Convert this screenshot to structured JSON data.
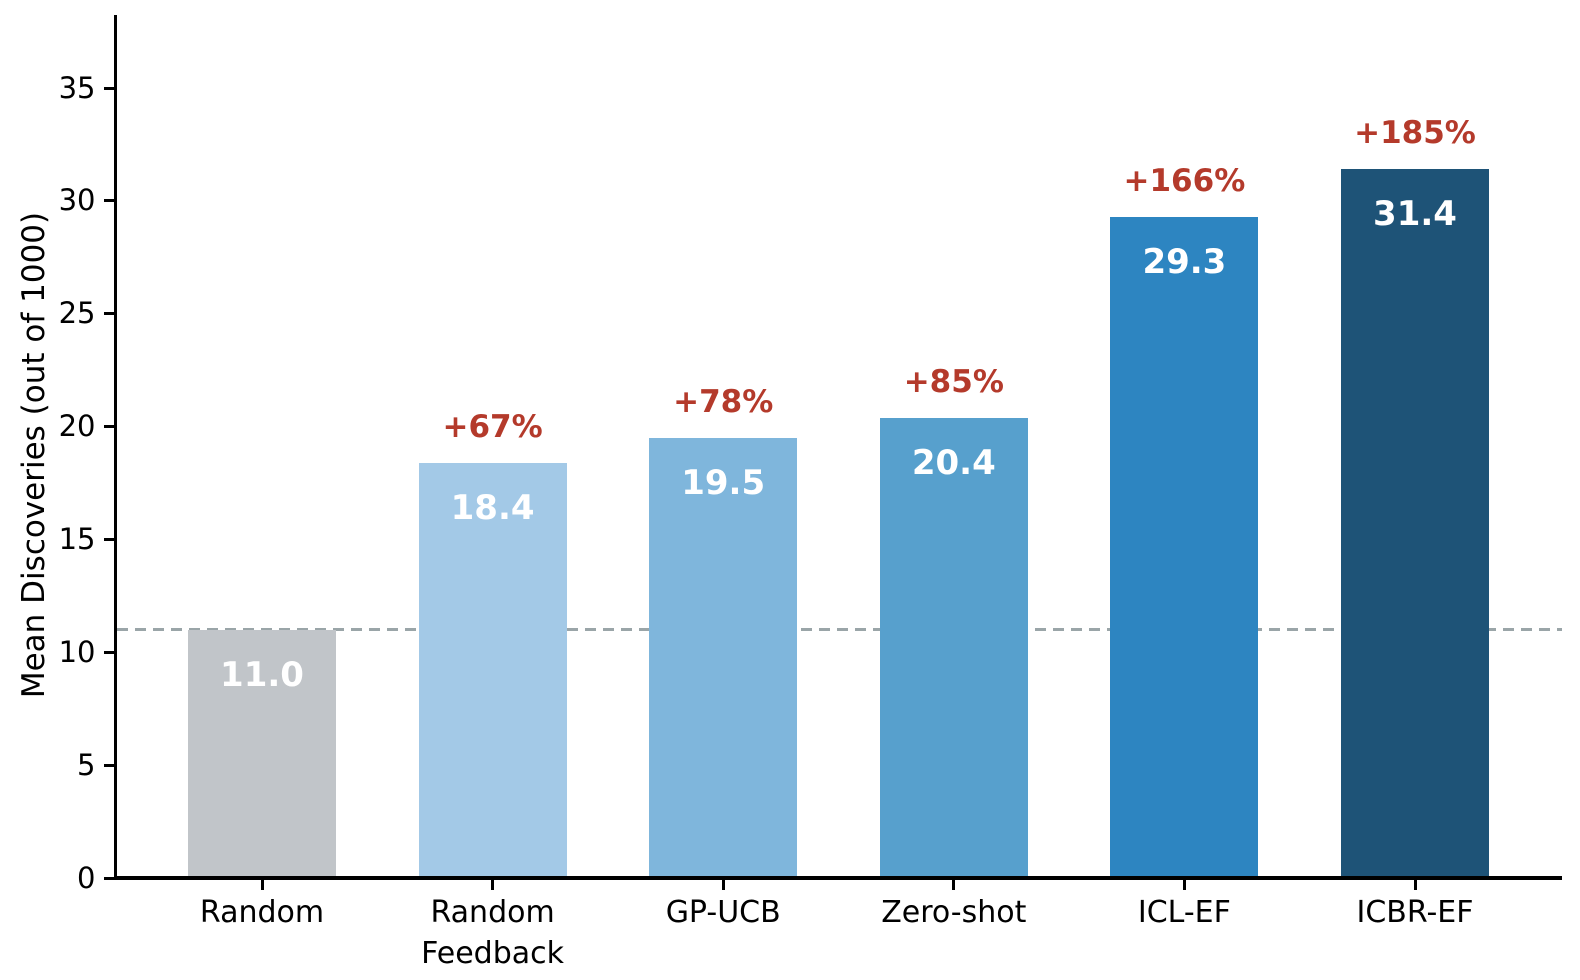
{
  "chart_data": {
    "type": "bar",
    "title": "",
    "ylabel": "Mean Discoveries (out of 1000)",
    "xlabel": "",
    "categories": [
      "Random",
      "Random\nFeedback",
      "GP-UCB",
      "Zero-shot",
      "ICL-EF",
      "ICBR-EF"
    ],
    "values": [
      11.0,
      18.4,
      19.5,
      20.4,
      29.3,
      31.4
    ],
    "value_labels": [
      "11.0",
      "18.4",
      "19.5",
      "20.4",
      "29.3",
      "31.4"
    ],
    "pct_gain_labels": [
      "",
      "+67%",
      "+78%",
      "+85%",
      "+166%",
      "+185%"
    ],
    "bar_colors": [
      "#c1c5c9",
      "#a3c9e7",
      "#7fb6dc",
      "#57a0cd",
      "#2d85c1",
      "#1e5377"
    ],
    "value_label_color": "#ffffff",
    "annotation_color": "#b43a2b",
    "baseline": {
      "value": 11.0,
      "style": "dashed",
      "color": "#9aa5a8"
    },
    "yticks": [
      0,
      5,
      10,
      15,
      20,
      25,
      30,
      35
    ],
    "ylim": [
      0,
      38.2
    ],
    "grid": false,
    "legend": null,
    "axis_color": "#000000"
  }
}
